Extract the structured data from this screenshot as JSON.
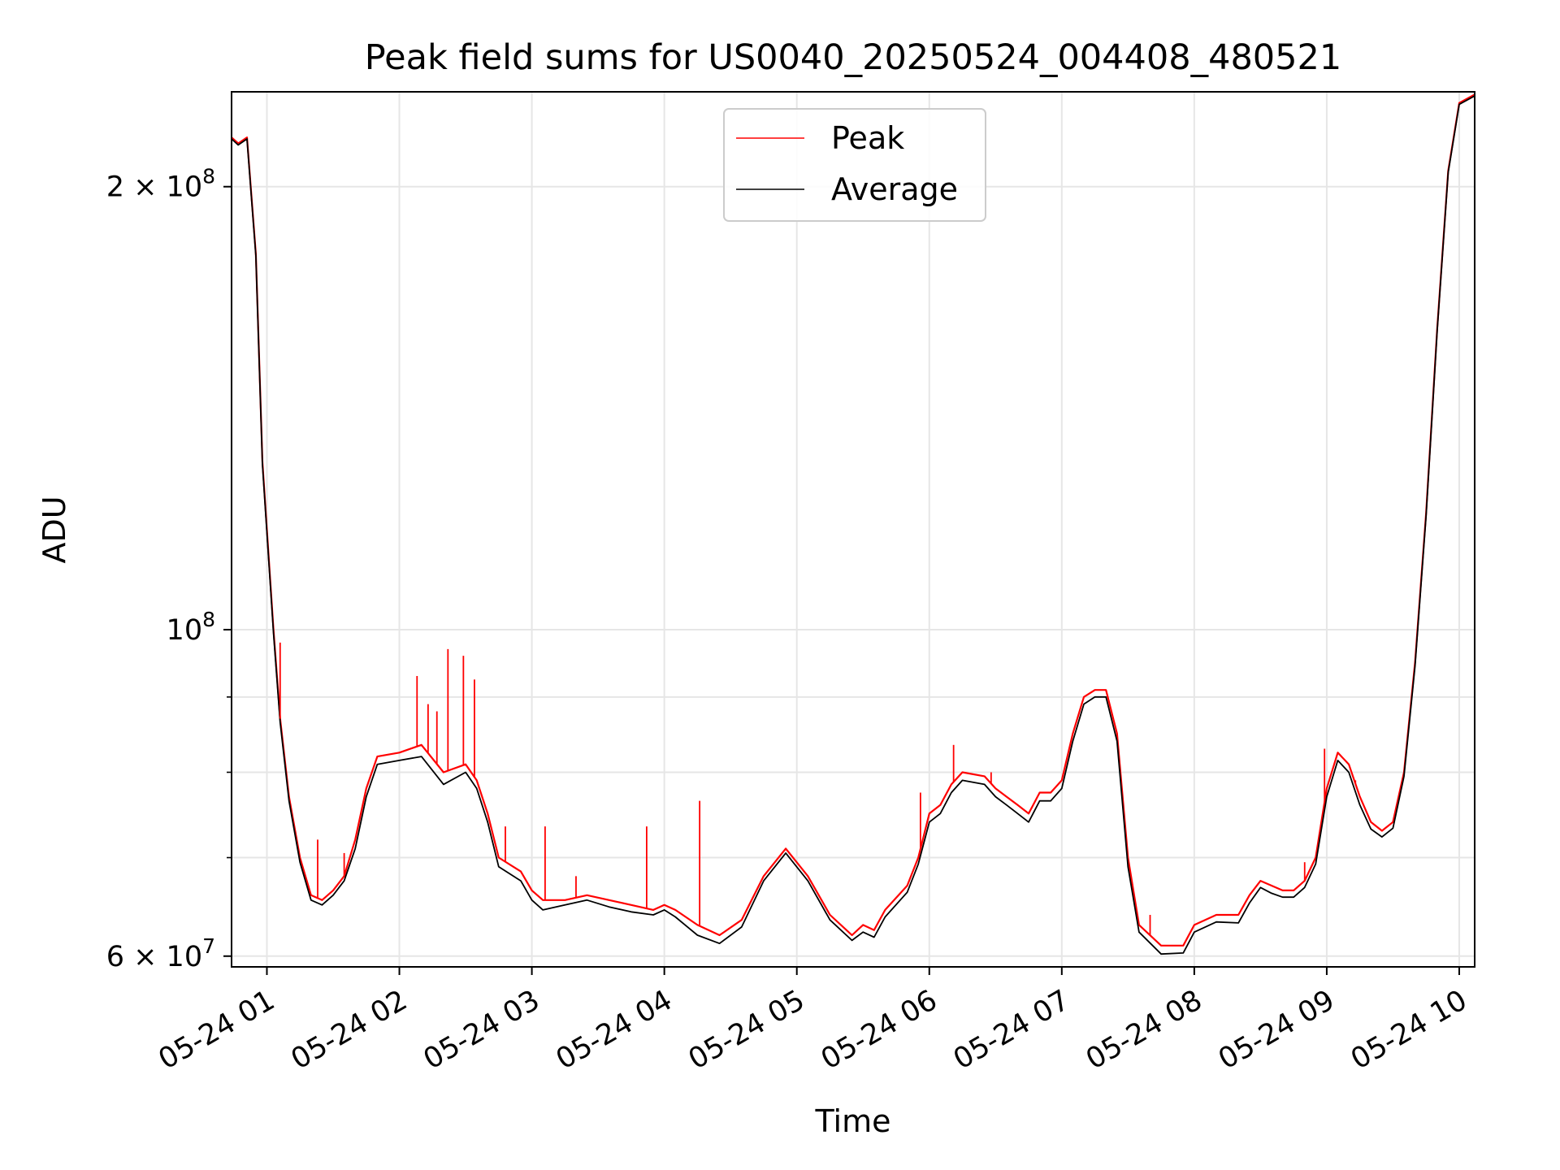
{
  "chart_data": {
    "type": "line",
    "title": "Peak field sums for US0040_20250524_004408_480521",
    "xlabel": "Time",
    "ylabel": "ADU",
    "y_scale": "log",
    "ylim": [
      59000000,
      232000000
    ],
    "xlim": [
      "2025-05-24 00:44",
      "2025-05-24 10:07"
    ],
    "grid": true,
    "legend_position": "upper-center",
    "x_ticks": [
      {
        "t": "2025-05-24 01:00",
        "label": "05-24 01"
      },
      {
        "t": "2025-05-24 02:00",
        "label": "05-24 02"
      },
      {
        "t": "2025-05-24 03:00",
        "label": "05-24 03"
      },
      {
        "t": "2025-05-24 04:00",
        "label": "05-24 04"
      },
      {
        "t": "2025-05-24 05:00",
        "label": "05-24 05"
      },
      {
        "t": "2025-05-24 06:00",
        "label": "05-24 06"
      },
      {
        "t": "2025-05-24 07:00",
        "label": "05-24 07"
      },
      {
        "t": "2025-05-24 08:00",
        "label": "05-24 08"
      },
      {
        "t": "2025-05-24 09:00",
        "label": "05-24 09"
      },
      {
        "t": "2025-05-24 10:00",
        "label": "05-24 10"
      }
    ],
    "y_major_ticks": [
      {
        "value": 60000000,
        "base": "6 × 10",
        "exp": "7"
      },
      {
        "value": 100000000,
        "base": "10",
        "exp": "8"
      },
      {
        "value": 200000000,
        "base": "2 × 10",
        "exp": "8"
      }
    ],
    "y_minor_ticks": [
      70000000,
      80000000,
      90000000
    ],
    "series": [
      {
        "name": "Peak",
        "color": "#ff0000",
        "points": [
          [
            "2025-05-24 00:44",
            216000000
          ],
          [
            "2025-05-24 00:47",
            214000000
          ],
          [
            "2025-05-24 00:51",
            216000000
          ],
          [
            "2025-05-24 00:55",
            180000000
          ],
          [
            "2025-05-24 00:58",
            130000000
          ],
          [
            "2025-05-24 01:03",
            100000000
          ],
          [
            "2025-05-24 01:06",
            87000000
          ],
          [
            "2025-05-24 01:10",
            77000000
          ],
          [
            "2025-05-24 01:15",
            70000000
          ],
          [
            "2025-05-24 01:20",
            66000000
          ],
          [
            "2025-05-24 01:25",
            65500000
          ],
          [
            "2025-05-24 01:30",
            66500000
          ],
          [
            "2025-05-24 01:35",
            68000000
          ],
          [
            "2025-05-24 01:40",
            72000000
          ],
          [
            "2025-05-24 01:45",
            78000000
          ],
          [
            "2025-05-24 01:50",
            82000000
          ],
          [
            "2025-05-24 02:00",
            82500000
          ],
          [
            "2025-05-24 02:10",
            83500000
          ],
          [
            "2025-05-24 02:20",
            80000000
          ],
          [
            "2025-05-24 02:30",
            81000000
          ],
          [
            "2025-05-24 02:35",
            79000000
          ],
          [
            "2025-05-24 02:40",
            75000000
          ],
          [
            "2025-05-24 02:45",
            70000000
          ],
          [
            "2025-05-24 02:55",
            68500000
          ],
          [
            "2025-05-24 03:00",
            66500000
          ],
          [
            "2025-05-24 03:05",
            65500000
          ],
          [
            "2025-05-24 03:15",
            65500000
          ],
          [
            "2025-05-24 03:25",
            66000000
          ],
          [
            "2025-05-24 03:35",
            65500000
          ],
          [
            "2025-05-24 03:45",
            65000000
          ],
          [
            "2025-05-24 03:55",
            64500000
          ],
          [
            "2025-05-24 04:00",
            65000000
          ],
          [
            "2025-05-24 04:05",
            64500000
          ],
          [
            "2025-05-24 04:15",
            63000000
          ],
          [
            "2025-05-24 04:25",
            62000000
          ],
          [
            "2025-05-24 04:35",
            63500000
          ],
          [
            "2025-05-24 04:45",
            68000000
          ],
          [
            "2025-05-24 04:55",
            71000000
          ],
          [
            "2025-05-24 05:05",
            68000000
          ],
          [
            "2025-05-24 05:15",
            64000000
          ],
          [
            "2025-05-24 05:25",
            62000000
          ],
          [
            "2025-05-24 05:30",
            63000000
          ],
          [
            "2025-05-24 05:35",
            62500000
          ],
          [
            "2025-05-24 05:40",
            64500000
          ],
          [
            "2025-05-24 05:50",
            67000000
          ],
          [
            "2025-05-24 05:55",
            70000000
          ],
          [
            "2025-05-24 06:00",
            75000000
          ],
          [
            "2025-05-24 06:05",
            76000000
          ],
          [
            "2025-05-24 06:10",
            78500000
          ],
          [
            "2025-05-24 06:15",
            80000000
          ],
          [
            "2025-05-24 06:25",
            79500000
          ],
          [
            "2025-05-24 06:30",
            78000000
          ],
          [
            "2025-05-24 06:35",
            77000000
          ],
          [
            "2025-05-24 06:40",
            76000000
          ],
          [
            "2025-05-24 06:45",
            75000000
          ],
          [
            "2025-05-24 06:50",
            77500000
          ],
          [
            "2025-05-24 06:55",
            77500000
          ],
          [
            "2025-05-24 07:00",
            79000000
          ],
          [
            "2025-05-24 07:05",
            85000000
          ],
          [
            "2025-05-24 07:10",
            90000000
          ],
          [
            "2025-05-24 07:15",
            91000000
          ],
          [
            "2025-05-24 07:20",
            91000000
          ],
          [
            "2025-05-24 07:25",
            85000000
          ],
          [
            "2025-05-24 07:30",
            70000000
          ],
          [
            "2025-05-24 07:35",
            63000000
          ],
          [
            "2025-05-24 07:45",
            61000000
          ],
          [
            "2025-05-24 07:55",
            61000000
          ],
          [
            "2025-05-24 08:00",
            63000000
          ],
          [
            "2025-05-24 08:10",
            64000000
          ],
          [
            "2025-05-24 08:20",
            64000000
          ],
          [
            "2025-05-24 08:25",
            66000000
          ],
          [
            "2025-05-24 08:30",
            67500000
          ],
          [
            "2025-05-24 08:35",
            67000000
          ],
          [
            "2025-05-24 08:40",
            66500000
          ],
          [
            "2025-05-24 08:45",
            66500000
          ],
          [
            "2025-05-24 08:50",
            67500000
          ],
          [
            "2025-05-24 08:55",
            70000000
          ],
          [
            "2025-05-24 09:00",
            78000000
          ],
          [
            "2025-05-24 09:05",
            82500000
          ],
          [
            "2025-05-24 09:10",
            81000000
          ],
          [
            "2025-05-24 09:15",
            77000000
          ],
          [
            "2025-05-24 09:20",
            74000000
          ],
          [
            "2025-05-24 09:25",
            73000000
          ],
          [
            "2025-05-24 09:30",
            74000000
          ],
          [
            "2025-05-24 09:35",
            80000000
          ],
          [
            "2025-05-24 09:40",
            95000000
          ],
          [
            "2025-05-24 09:45",
            120000000
          ],
          [
            "2025-05-24 09:50",
            160000000
          ],
          [
            "2025-05-24 09:55",
            205000000
          ],
          [
            "2025-05-24 10:00",
            228000000
          ],
          [
            "2025-05-24 10:07",
            231000000
          ]
        ]
      },
      {
        "name": "Average",
        "color": "#000000",
        "points": [
          [
            "2025-05-24 00:44",
            215500000
          ],
          [
            "2025-05-24 00:47",
            213500000
          ],
          [
            "2025-05-24 00:51",
            215500000
          ],
          [
            "2025-05-24 00:55",
            179500000
          ],
          [
            "2025-05-24 00:58",
            129500000
          ],
          [
            "2025-05-24 01:03",
            99500000
          ],
          [
            "2025-05-24 01:06",
            86500000
          ],
          [
            "2025-05-24 01:10",
            76500000
          ],
          [
            "2025-05-24 01:15",
            69500000
          ],
          [
            "2025-05-24 01:20",
            65500000
          ],
          [
            "2025-05-24 01:25",
            65000000
          ],
          [
            "2025-05-24 01:30",
            66000000
          ],
          [
            "2025-05-24 01:35",
            67500000
          ],
          [
            "2025-05-24 01:40",
            71000000
          ],
          [
            "2025-05-24 01:45",
            77000000
          ],
          [
            "2025-05-24 01:50",
            81000000
          ],
          [
            "2025-05-24 02:00",
            81500000
          ],
          [
            "2025-05-24 02:10",
            82000000
          ],
          [
            "2025-05-24 02:20",
            78500000
          ],
          [
            "2025-05-24 02:30",
            80000000
          ],
          [
            "2025-05-24 02:35",
            78000000
          ],
          [
            "2025-05-24 02:40",
            74000000
          ],
          [
            "2025-05-24 02:45",
            69000000
          ],
          [
            "2025-05-24 02:55",
            67500000
          ],
          [
            "2025-05-24 03:00",
            65500000
          ],
          [
            "2025-05-24 03:05",
            64500000
          ],
          [
            "2025-05-24 03:15",
            65000000
          ],
          [
            "2025-05-24 03:25",
            65500000
          ],
          [
            "2025-05-24 03:35",
            64800000
          ],
          [
            "2025-05-24 03:45",
            64300000
          ],
          [
            "2025-05-24 03:55",
            64000000
          ],
          [
            "2025-05-24 04:00",
            64500000
          ],
          [
            "2025-05-24 04:05",
            63800000
          ],
          [
            "2025-05-24 04:15",
            62000000
          ],
          [
            "2025-05-24 04:25",
            61200000
          ],
          [
            "2025-05-24 04:35",
            62800000
          ],
          [
            "2025-05-24 04:45",
            67500000
          ],
          [
            "2025-05-24 04:55",
            70500000
          ],
          [
            "2025-05-24 05:05",
            67500000
          ],
          [
            "2025-05-24 05:15",
            63500000
          ],
          [
            "2025-05-24 05:25",
            61500000
          ],
          [
            "2025-05-24 05:30",
            62300000
          ],
          [
            "2025-05-24 05:35",
            61800000
          ],
          [
            "2025-05-24 05:40",
            63800000
          ],
          [
            "2025-05-24 05:50",
            66300000
          ],
          [
            "2025-05-24 05:55",
            69300000
          ],
          [
            "2025-05-24 06:00",
            74000000
          ],
          [
            "2025-05-24 06:05",
            75000000
          ],
          [
            "2025-05-24 06:10",
            77500000
          ],
          [
            "2025-05-24 06:15",
            79000000
          ],
          [
            "2025-05-24 06:25",
            78500000
          ],
          [
            "2025-05-24 06:30",
            77000000
          ],
          [
            "2025-05-24 06:35",
            76000000
          ],
          [
            "2025-05-24 06:40",
            75000000
          ],
          [
            "2025-05-24 06:45",
            74000000
          ],
          [
            "2025-05-24 06:50",
            76500000
          ],
          [
            "2025-05-24 06:55",
            76500000
          ],
          [
            "2025-05-24 07:00",
            78000000
          ],
          [
            "2025-05-24 07:05",
            84000000
          ],
          [
            "2025-05-24 07:10",
            89000000
          ],
          [
            "2025-05-24 07:15",
            90000000
          ],
          [
            "2025-05-24 07:20",
            90000000
          ],
          [
            "2025-05-24 07:25",
            84000000
          ],
          [
            "2025-05-24 07:30",
            69000000
          ],
          [
            "2025-05-24 07:35",
            62300000
          ],
          [
            "2025-05-24 07:45",
            60200000
          ],
          [
            "2025-05-24 07:55",
            60300000
          ],
          [
            "2025-05-24 08:00",
            62300000
          ],
          [
            "2025-05-24 08:10",
            63300000
          ],
          [
            "2025-05-24 08:20",
            63200000
          ],
          [
            "2025-05-24 08:25",
            65200000
          ],
          [
            "2025-05-24 08:30",
            66800000
          ],
          [
            "2025-05-24 08:35",
            66200000
          ],
          [
            "2025-05-24 08:40",
            65800000
          ],
          [
            "2025-05-24 08:45",
            65800000
          ],
          [
            "2025-05-24 08:50",
            66800000
          ],
          [
            "2025-05-24 08:55",
            69300000
          ],
          [
            "2025-05-24 09:00",
            77000000
          ],
          [
            "2025-05-24 09:05",
            81500000
          ],
          [
            "2025-05-24 09:10",
            80000000
          ],
          [
            "2025-05-24 09:15",
            76000000
          ],
          [
            "2025-05-24 09:20",
            73200000
          ],
          [
            "2025-05-24 09:25",
            72300000
          ],
          [
            "2025-05-24 09:30",
            73300000
          ],
          [
            "2025-05-24 09:35",
            79500000
          ],
          [
            "2025-05-24 09:40",
            94500000
          ],
          [
            "2025-05-24 09:45",
            119500000
          ],
          [
            "2025-05-24 09:50",
            159500000
          ],
          [
            "2025-05-24 09:55",
            204500000
          ],
          [
            "2025-05-24 10:00",
            227500000
          ],
          [
            "2025-05-24 10:07",
            230500000
          ]
        ]
      }
    ],
    "spikes": [
      {
        "t": "2025-05-24 01:06",
        "value": 98000000
      },
      {
        "t": "2025-05-24 01:23",
        "value": 72000000
      },
      {
        "t": "2025-05-24 01:35",
        "value": 70500000
      },
      {
        "t": "2025-05-24 02:08",
        "value": 93000000
      },
      {
        "t": "2025-05-24 02:13",
        "value": 89000000
      },
      {
        "t": "2025-05-24 02:17",
        "value": 88000000
      },
      {
        "t": "2025-05-24 02:22",
        "value": 97000000
      },
      {
        "t": "2025-05-24 02:29",
        "value": 96000000
      },
      {
        "t": "2025-05-24 02:34",
        "value": 92500000
      },
      {
        "t": "2025-05-24 02:48",
        "value": 73500000
      },
      {
        "t": "2025-05-24 03:06",
        "value": 73500000
      },
      {
        "t": "2025-05-24 03:20",
        "value": 68000000
      },
      {
        "t": "2025-05-24 03:52",
        "value": 73500000
      },
      {
        "t": "2025-05-24 04:16",
        "value": 76500000
      },
      {
        "t": "2025-05-24 05:56",
        "value": 77500000
      },
      {
        "t": "2025-05-24 06:11",
        "value": 83500000
      },
      {
        "t": "2025-05-24 06:28",
        "value": 80000000
      },
      {
        "t": "2025-05-24 07:40",
        "value": 64000000
      },
      {
        "t": "2025-05-24 08:50",
        "value": 69500000
      },
      {
        "t": "2025-05-24 08:59",
        "value": 83000000
      },
      {
        "t": "2025-05-24 09:13",
        "value": 79000000
      }
    ]
  }
}
